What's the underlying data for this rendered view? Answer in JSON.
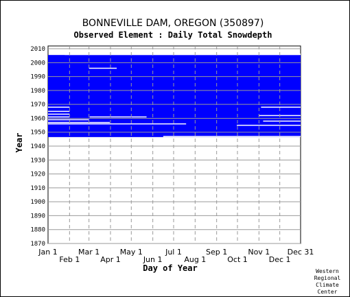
{
  "chart_data": {
    "type": "heatmap",
    "title": "BONNEVILLE DAM, OREGON   (350897)",
    "subtitle": "Observed Element : Daily Total Snowdepth",
    "xlabel": "Day of Year",
    "ylabel": "Year",
    "x_ticks_top_row": [
      "Jan 1",
      "Mar 1",
      "May 1",
      "Jul 1",
      "Sep 1",
      "Nov 1",
      "Dec 31"
    ],
    "x_ticks_bottom_row": [
      "Feb 1",
      "Apr 1",
      "Jun 1",
      "Aug 1",
      "Oct 1",
      "Dec 1"
    ],
    "y_ticks": [
      1870,
      1880,
      1890,
      1900,
      1910,
      1920,
      1930,
      1940,
      1950,
      1960,
      1970,
      1980,
      1990,
      2000,
      2010
    ],
    "ylim": [
      1870,
      2012
    ],
    "xlim_day_of_year": [
      1,
      365
    ],
    "data_coverage": {
      "year_range": [
        1947,
        2005
      ],
      "day_range": [
        1,
        365
      ],
      "color": "#0000ff",
      "partial_last_year_end_day": 25,
      "gaps": [
        {
          "year": 1947,
          "day_start": 167,
          "day_end": 365
        },
        {
          "year": 1968,
          "day_start": 1,
          "day_end": 32
        },
        {
          "year": 1968,
          "day_start": 308,
          "day_end": 365
        },
        {
          "year": 1965,
          "day_start": 1,
          "day_end": 32
        },
        {
          "year": 1963,
          "day_start": 1,
          "day_end": 32
        },
        {
          "year": 1961,
          "day_start": 61,
          "day_end": 143
        },
        {
          "year": 1959,
          "day_start": 1,
          "day_end": 60
        },
        {
          "year": 1958,
          "day_start": 311,
          "day_end": 365
        },
        {
          "year": 1957,
          "day_start": 1,
          "day_end": 90
        },
        {
          "year": 1956,
          "day_start": 1,
          "day_end": 200
        },
        {
          "year": 1955,
          "day_start": 273,
          "day_end": 365
        },
        {
          "year": 1996,
          "day_start": 60,
          "day_end": 100
        },
        {
          "year": 1962,
          "day_start": 305,
          "day_end": 365
        },
        {
          "year": 1961,
          "day_start": 1,
          "day_end": 32
        }
      ]
    },
    "credit": [
      "Western",
      "Regional",
      "Climate",
      "Center"
    ]
  }
}
